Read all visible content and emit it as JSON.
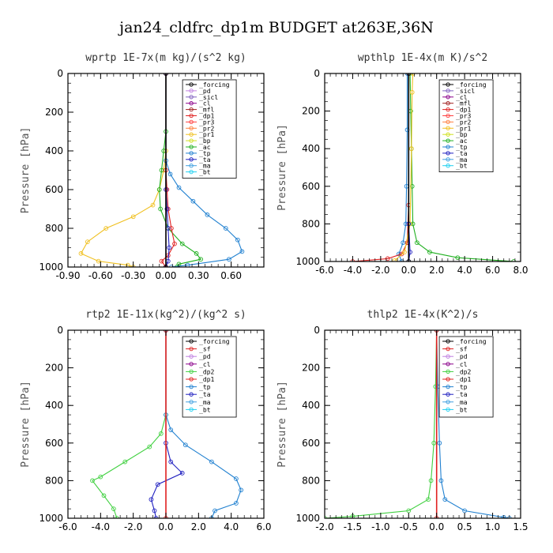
{
  "figure": {
    "title": "jan24_cldfrc_dp1m  BUDGET at263E,36N"
  },
  "chart_data": [
    {
      "type": "line",
      "title": "wprtp   1E-7x(m kg)/(s^2 kg)",
      "ylabel": "Pressure [hPa]",
      "xlim": [
        -0.9,
        0.9
      ],
      "ylim": [
        1000,
        0
      ],
      "xticks": [
        -0.9,
        -0.6,
        -0.3,
        0.0,
        0.3,
        0.6
      ],
      "xtick_labels": [
        "-0.90",
        "-0.60",
        "-0.30",
        "0.00",
        "0.30",
        "0.60"
      ],
      "yticks": [
        0,
        200,
        400,
        600,
        800,
        1000
      ],
      "ytick_labels": [
        "0",
        "200",
        "400",
        "600",
        "800",
        "1000"
      ],
      "legend": [
        "_forcing",
        "_pd",
        "_sicl",
        "_cl",
        "_mfl",
        "_dp1",
        "_pr3",
        "_pr2",
        "_pr1",
        "_bp",
        "_ac",
        "_tp",
        "_ta",
        "_ma",
        "_bt"
      ],
      "legend_placement": "top-right",
      "series": [
        {
          "name": "_pr1",
          "color": "#f0c020",
          "points": [
            [
              0,
              0
            ],
            [
              0,
              400
            ],
            [
              -0.02,
              500
            ],
            [
              -0.06,
              600
            ],
            [
              -0.12,
              680
            ],
            [
              -0.3,
              740
            ],
            [
              -0.55,
              800
            ],
            [
              -0.72,
              870
            ],
            [
              -0.78,
              930
            ],
            [
              -0.62,
              970
            ],
            [
              -0.35,
              990
            ],
            [
              -0.3,
              1000
            ]
          ]
        },
        {
          "name": "_ac",
          "color": "#20b020",
          "points": [
            [
              0,
              0
            ],
            [
              0,
              300
            ],
            [
              -0.02,
              400
            ],
            [
              -0.04,
              500
            ],
            [
              -0.06,
              600
            ],
            [
              -0.05,
              700
            ],
            [
              0.02,
              800
            ],
            [
              0.15,
              880
            ],
            [
              0.28,
              930
            ],
            [
              0.32,
              960
            ],
            [
              0.12,
              985
            ],
            [
              0.1,
              1000
            ]
          ]
        },
        {
          "name": "_tp",
          "color": "#2080d0",
          "points": [
            [
              0,
              0
            ],
            [
              0,
              450
            ],
            [
              0.04,
              520
            ],
            [
              0.12,
              590
            ],
            [
              0.25,
              660
            ],
            [
              0.38,
              730
            ],
            [
              0.55,
              800
            ],
            [
              0.66,
              860
            ],
            [
              0.7,
              920
            ],
            [
              0.58,
              960
            ],
            [
              0.2,
              990
            ],
            [
              0.05,
              1000
            ]
          ]
        },
        {
          "name": "_dp1",
          "color": "#e02020",
          "points": [
            [
              0,
              0
            ],
            [
              0,
              500
            ],
            [
              0.01,
              600
            ],
            [
              0.02,
              700
            ],
            [
              0.05,
              800
            ],
            [
              0.08,
              880
            ],
            [
              0.02,
              940
            ],
            [
              -0.04,
              970
            ],
            [
              0,
              1000
            ]
          ]
        },
        {
          "name": "_ta",
          "color": "#2020c0",
          "points": [
            [
              0,
              0
            ],
            [
              0,
              600
            ],
            [
              0.01,
              700
            ],
            [
              0.02,
              800
            ],
            [
              0.03,
              900
            ],
            [
              0.02,
              970
            ],
            [
              0,
              1000
            ]
          ]
        },
        {
          "name": "_cl",
          "color": "#8a008a",
          "points": [
            [
              0,
              0
            ],
            [
              0,
              1000
            ]
          ]
        },
        {
          "name": "_forcing",
          "color": "#000000",
          "points": [
            [
              0,
              0
            ],
            [
              0,
              1000
            ]
          ]
        }
      ]
    },
    {
      "type": "line",
      "title": "wpthlp   1E-4x(m K)/s^2",
      "ylabel": "Pressure [hPa]",
      "xlim": [
        -6.0,
        8.0
      ],
      "ylim": [
        1000,
        0
      ],
      "xticks": [
        -6,
        -4,
        -2,
        0,
        2,
        4,
        6,
        8
      ],
      "xtick_labels": [
        "-6.0",
        "-4.0",
        "-2.0",
        "0.0",
        "2.0",
        "4.0",
        "6.0",
        "8.0"
      ],
      "yticks": [
        0,
        200,
        400,
        600,
        800,
        1000
      ],
      "ytick_labels": [
        "0",
        "200",
        "400",
        "600",
        "800",
        "1000"
      ],
      "legend": [
        "_forcing",
        "_sicl",
        "_cl",
        "_mfl",
        "_dp1",
        "_pr3",
        "_pr2",
        "_pr1",
        "_bp",
        "_ac",
        "_tp",
        "_ta",
        "_ma",
        "_bt"
      ],
      "legend_placement": "top-right",
      "series": [
        {
          "name": "_ac",
          "color": "#20b020",
          "points": [
            [
              0.1,
              0
            ],
            [
              0.15,
              200
            ],
            [
              0.2,
              400
            ],
            [
              0.25,
              600
            ],
            [
              0.3,
              800
            ],
            [
              0.6,
              900
            ],
            [
              1.5,
              950
            ],
            [
              3.5,
              980
            ],
            [
              7.5,
              1000
            ]
          ]
        },
        {
          "name": "_tp",
          "color": "#2080d0",
          "points": [
            [
              -0.1,
              0
            ],
            [
              -0.1,
              300
            ],
            [
              -0.15,
              600
            ],
            [
              -0.2,
              800
            ],
            [
              -0.4,
              900
            ],
            [
              -0.7,
              960
            ],
            [
              -0.5,
              1000
            ]
          ]
        },
        {
          "name": "_dp1",
          "color": "#e02020",
          "points": [
            [
              0,
              0
            ],
            [
              0,
              700
            ],
            [
              -0.1,
              900
            ],
            [
              -0.5,
              960
            ],
            [
              -1.5,
              985
            ],
            [
              -4.0,
              1000
            ]
          ]
        },
        {
          "name": "_pr1",
          "color": "#f0c020",
          "points": [
            [
              0.3,
              0
            ],
            [
              0.25,
              100
            ],
            [
              0.2,
              400
            ],
            [
              0.1,
              800
            ],
            [
              -0.3,
              950
            ],
            [
              -1.0,
              995
            ]
          ]
        },
        {
          "name": "_ta",
          "color": "#2020c0",
          "points": [
            [
              0,
              0
            ],
            [
              0,
              800
            ],
            [
              0.1,
              950
            ],
            [
              0,
              1000
            ]
          ]
        },
        {
          "name": "_forcing",
          "color": "#000000",
          "points": [
            [
              0,
              0
            ],
            [
              0,
              1000
            ]
          ]
        }
      ]
    },
    {
      "type": "line",
      "title": "rtp2   1E-11x(kg^2)/(kg^2 s)",
      "ylabel": "Pressure [hPa]",
      "xlim": [
        -6.0,
        6.0
      ],
      "ylim": [
        1000,
        0
      ],
      "xticks": [
        -6,
        -4,
        -2,
        0,
        2,
        4,
        6
      ],
      "xtick_labels": [
        "-6.0",
        "-4.0",
        "-2.0",
        "0.0",
        "2.0",
        "4.0",
        "6.0"
      ],
      "yticks": [
        0,
        200,
        400,
        600,
        800,
        1000
      ],
      "ytick_labels": [
        "0",
        "200",
        "400",
        "600",
        "800",
        "1000"
      ],
      "legend": [
        "_forcing",
        "_sf",
        "_pd",
        "_cl",
        "_dp2",
        "_dp1",
        "_tp",
        "_ta",
        "_ma",
        "_bt"
      ],
      "legend_placement": "top-right",
      "series": [
        {
          "name": "_dp1",
          "color": "#40d040",
          "points": [
            [
              0,
              0
            ],
            [
              0,
              450
            ],
            [
              -0.3,
              550
            ],
            [
              -1.0,
              620
            ],
            [
              -2.5,
              700
            ],
            [
              -4.0,
              780
            ],
            [
              -4.5,
              800
            ],
            [
              -3.8,
              880
            ],
            [
              -3.2,
              950
            ],
            [
              -3.0,
              1000
            ]
          ]
        },
        {
          "name": "_tp",
          "color": "#2080d0",
          "points": [
            [
              0,
              0
            ],
            [
              0,
              450
            ],
            [
              0.3,
              530
            ],
            [
              1.2,
              610
            ],
            [
              2.8,
              700
            ],
            [
              4.3,
              790
            ],
            [
              4.6,
              850
            ],
            [
              4.3,
              920
            ],
            [
              3.0,
              960
            ],
            [
              2.8,
              1000
            ]
          ]
        },
        {
          "name": "_ta",
          "color": "#2020c0",
          "points": [
            [
              0,
              0
            ],
            [
              0,
              600
            ],
            [
              0.3,
              700
            ],
            [
              1.0,
              760
            ],
            [
              -0.5,
              820
            ],
            [
              -0.9,
              900
            ],
            [
              -0.7,
              960
            ],
            [
              -0.6,
              1000
            ]
          ]
        },
        {
          "name": "_forcing",
          "color": "#e02020",
          "points": [
            [
              0,
              0
            ],
            [
              0,
              1000
            ]
          ]
        }
      ]
    },
    {
      "type": "line",
      "title": "thlp2   1E-4x(K^2)/s",
      "ylabel": "Pressure [hPa]",
      "xlim": [
        -2.0,
        1.5
      ],
      "ylim": [
        1000,
        0
      ],
      "xticks": [
        -2.0,
        -1.5,
        -1.0,
        -0.5,
        0.0,
        0.5,
        1.0,
        1.5
      ],
      "xtick_labels": [
        "-2.0",
        "-1.5",
        "-1.0",
        "-0.5",
        "0.0",
        "0.5",
        "1.0",
        "1.5"
      ],
      "yticks": [
        0,
        200,
        400,
        600,
        800,
        1000
      ],
      "ytick_labels": [
        "0",
        "200",
        "400",
        "600",
        "800",
        "1000"
      ],
      "legend": [
        "_forcing",
        "_sf",
        "_pd",
        "_cl",
        "_dp2",
        "_dp1",
        "_tp",
        "_ta",
        "_ma",
        "_bt"
      ],
      "legend_placement": "top-right",
      "series": [
        {
          "name": "_dp1",
          "color": "#40d040",
          "points": [
            [
              0,
              0
            ],
            [
              -0.02,
              300
            ],
            [
              -0.05,
              600
            ],
            [
              -0.1,
              800
            ],
            [
              -0.15,
              900
            ],
            [
              -0.5,
              960
            ],
            [
              -1.5,
              990
            ],
            [
              -2.0,
              1000
            ]
          ]
        },
        {
          "name": "_tp",
          "color": "#2080d0",
          "points": [
            [
              0,
              0
            ],
            [
              0.02,
              300
            ],
            [
              0.05,
              600
            ],
            [
              0.08,
              800
            ],
            [
              0.15,
              900
            ],
            [
              0.5,
              960
            ],
            [
              1.2,
              995
            ],
            [
              1.3,
              1000
            ]
          ]
        },
        {
          "name": "_forcing",
          "color": "#e02020",
          "points": [
            [
              0,
              0
            ],
            [
              0,
              1000
            ]
          ]
        }
      ]
    }
  ]
}
